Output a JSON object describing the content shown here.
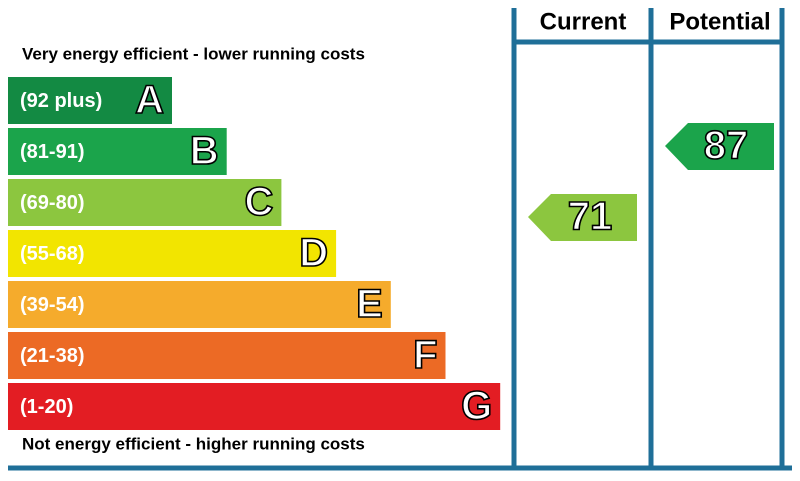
{
  "header": {
    "current": "Current",
    "potential": "Potential"
  },
  "top_note": "Very energy efficient - lower running costs",
  "bottom_note": "Not energy efficient - higher running costs",
  "bands": [
    {
      "range": "(92 plus)",
      "letter": "A",
      "color": "#138a43"
    },
    {
      "range": "(81-91)",
      "letter": "B",
      "color": "#1ba44b"
    },
    {
      "range": "(69-80)",
      "letter": "C",
      "color": "#8cc63f"
    },
    {
      "range": "(55-68)",
      "letter": "D",
      "color": "#f2e500"
    },
    {
      "range": "(39-54)",
      "letter": "E",
      "color": "#f5ab2c"
    },
    {
      "range": "(21-38)",
      "letter": "F",
      "color": "#ec6a25"
    },
    {
      "range": "(1-20)",
      "letter": "G",
      "color": "#e31d23"
    }
  ],
  "current": {
    "value": 71,
    "color": "#8cc63f"
  },
  "potential": {
    "value": 87,
    "color": "#1ba44b"
  }
}
